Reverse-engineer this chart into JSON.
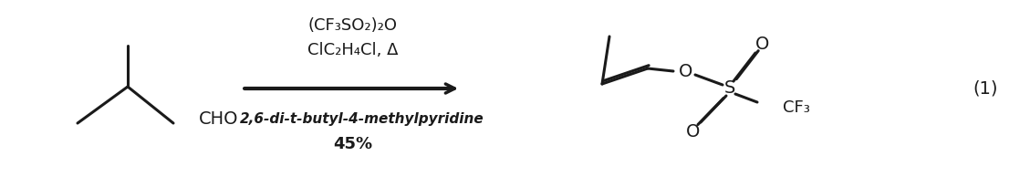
{
  "fig_width": 11.29,
  "fig_height": 1.94,
  "bg_color": "#ffffff",
  "line_color": "#1a1a1a",
  "above_arrow_line1": "(CF₃SO₂)₂O",
  "above_arrow_line2": "ClC₂H₄Cl, Δ",
  "below_arrow_line1": "2,6-di-t-butyl-4-methylpyridine",
  "below_arrow_line2": "45%",
  "equation_number": "(1)"
}
